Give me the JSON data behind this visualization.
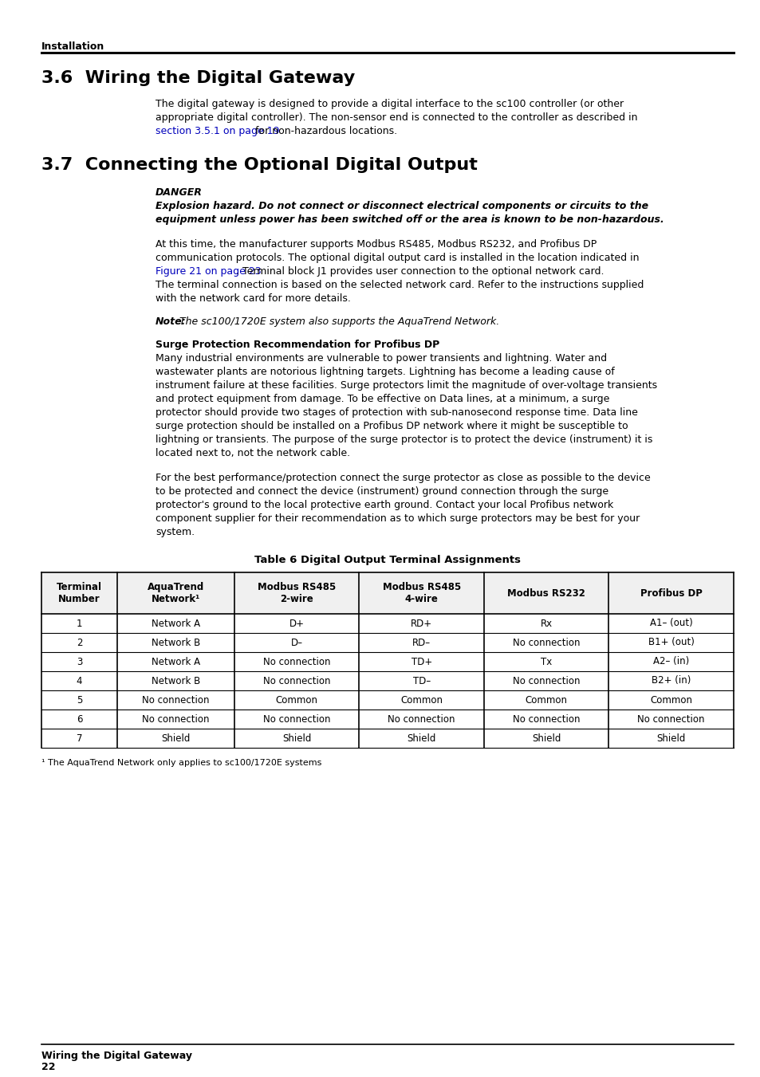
{
  "bg_color": "#ffffff",
  "text_color": "#000000",
  "link_color": "#0000bb",
  "header_label": "Installation",
  "section_36_title": "3.6  Wiring the Digital Gateway",
  "section_37_title": "3.7  Connecting the Optional Digital Output",
  "danger_label": "DANGER",
  "danger_body_line1": "Explosion hazard. Do not connect or disconnect electrical components or circuits to the",
  "danger_body_line2": "equipment unless power has been switched off or the area is known to be non-hazardous.",
  "para1_line1": "At this time, the manufacturer supports Modbus RS485, Modbus RS232, and Profibus DP",
  "para1_line2": "communication protocols. The optional digital output card is installed in the location indicated in",
  "para1_line2_before": "communication protocols. The optional digital output card is installed in the location indicated in",
  "para1_line3_before": "",
  "para1_link": "Figure 21 on page 23",
  "para1_line3_after": ". Terminal block J1 provides user connection to the optional network card.",
  "para1_line4": "The terminal connection is based on the selected network card. Refer to the instructions supplied",
  "para1_line5": "with the network card for more details.",
  "note_bold": "Note:",
  "note_italic": " The sc100/1720E system also supports the AquaTrend Network.",
  "surge_title": "Surge Protection Recommendation for Profibus DP",
  "surge1_line1": "Many industrial environments are vulnerable to power transients and lightning. Water and",
  "surge1_line2": "wastewater plants are notorious lightning targets. Lightning has become a leading cause of",
  "surge1_line3": "instrument failure at these facilities. Surge protectors limit the magnitude of over-voltage transients",
  "surge1_line4": "and protect equipment from damage. To be effective on Data lines, at a minimum, a surge",
  "surge1_line5": "protector should provide two stages of protection with sub-nanosecond response time. Data line",
  "surge1_line6": "surge protection should be installed on a Profibus DP network where it might be susceptible to",
  "surge1_line7": "lightning or transients. The purpose of the surge protector is to protect the device (instrument) it is",
  "surge1_line8": "located next to, not the network cable.",
  "surge2_line1": "For the best performance/protection connect the surge protector as close as possible to the device",
  "surge2_line2": "to be protected and connect the device (instrument) ground connection through the surge",
  "surge2_line3": "protector's ground to the local protective earth ground. Contact your local Profibus network",
  "surge2_line4": "component supplier for their recommendation as to which surge protectors may be best for your",
  "surge2_line5": "system.",
  "body36_line1": "The digital gateway is designed to provide a digital interface to the sc100 controller (or other",
  "body36_line2": "appropriate digital controller). The non-sensor end is connected to the controller as described in",
  "body36_line3_link": "section 3.5.1 on page 19",
  "body36_line3_after": " for non-hazardous locations.",
  "table_title": "Table 6 Digital Output Terminal Assignments",
  "table_headers": [
    "Terminal\nNumber",
    "AquaTrend\nNetwork¹",
    "Modbus RS485\n2-wire",
    "Modbus RS485\n4-wire",
    "Modbus RS232",
    "Profibus DP"
  ],
  "table_rows": [
    [
      "1",
      "Network A",
      "D+",
      "RD+",
      "Rx",
      "A1– (out)"
    ],
    [
      "2",
      "Network B",
      "D–",
      "RD–",
      "No connection",
      "B1+ (out)"
    ],
    [
      "3",
      "Network A",
      "No connection",
      "TD+",
      "Tx",
      "A2– (in)"
    ],
    [
      "4",
      "Network B",
      "No connection",
      "TD–",
      "No connection",
      "B2+ (in)"
    ],
    [
      "5",
      "No connection",
      "Common",
      "Common",
      "Common",
      "Common"
    ],
    [
      "6",
      "No connection",
      "No connection",
      "No connection",
      "No connection",
      "No connection"
    ],
    [
      "7",
      "Shield",
      "Shield",
      "Shield",
      "Shield",
      "Shield"
    ]
  ],
  "footnote": "¹ The AquaTrend Network only applies to sc100/1720E systems",
  "footer_label": "Wiring the Digital Gateway",
  "footer_page": "22",
  "col_ratios": [
    0.1,
    0.155,
    0.165,
    0.165,
    0.165,
    0.165
  ]
}
